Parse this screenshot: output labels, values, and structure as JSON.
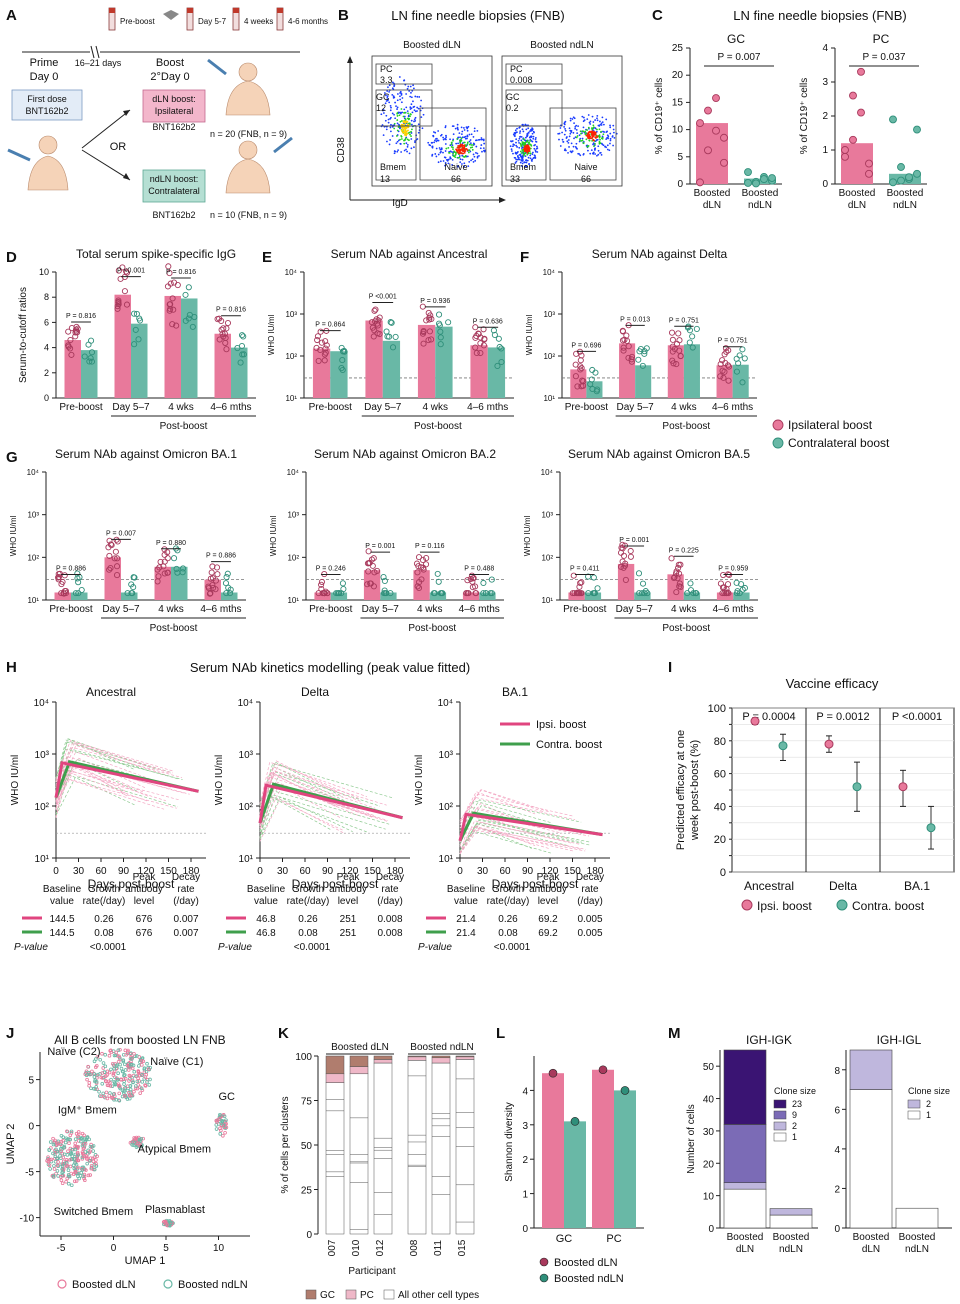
{
  "colors": {
    "ipsi": "#e8799b",
    "ipsi_dot": "#a8395c",
    "contra": "#69b8a6",
    "contra_dot": "#2f8f7a",
    "line_ipsi": "#e0457f",
    "line_contra": "#3f9f4c",
    "gc": "#b07d6e",
    "pc": "#efb8c8"
  },
  "panel_A": {
    "letter": "A",
    "timeline": [
      "Pre-boost",
      "Day 5-7",
      "4 weeks",
      "4-6 months"
    ],
    "prime": "Prime",
    "day0": "Day 0",
    "gap": "16–21 days",
    "boost": "Boost",
    "boost_day": "2°Day 0",
    "first_dose_1": "First dose",
    "first_dose_2": "BNT162b2",
    "or": "OR",
    "dln_box_1": "dLN boost:",
    "dln_box_2": "Ipsilateral",
    "dln_vaccine": "BNT162b2",
    "dln_n": "n = 20 (FNB, n = 9)",
    "ndln_box_1": "ndLN boost:",
    "ndln_box_2": "Contralateral",
    "ndln_vaccine": "BNT162b2",
    "ndln_n": "n = 10 (FNB, n = 9)"
  },
  "panel_B": {
    "letter": "B",
    "title": "LN fine needle biopsies (FNB)",
    "ylabel": "CD38",
    "xlabel": "IgD",
    "plots": [
      {
        "label": "Boosted dLN",
        "gates": [
          {
            "name": "PC",
            "value": "3.3"
          },
          {
            "name": "GC",
            "value": "12"
          },
          {
            "name": "Bmem",
            "value": "13"
          },
          {
            "name": "Naive",
            "value": "66"
          }
        ]
      },
      {
        "label": "Boosted ndLN",
        "gates": [
          {
            "name": "PC",
            "value": "0.008"
          },
          {
            "name": "GC",
            "value": "0.2"
          },
          {
            "name": "Bmem",
            "value": "33"
          },
          {
            "name": "Naive",
            "value": "66"
          }
        ]
      }
    ]
  },
  "panel_C": {
    "letter": "C",
    "title": "LN fine needle biopsies (FNB)"
  },
  "panel_D": {
    "letter": "D"
  },
  "panel_E": {
    "letter": "E"
  },
  "panel_F": {
    "letter": "F"
  },
  "panel_G": {
    "letter": "G"
  },
  "legend_DG": {
    "ipsi": "Ipsilateral boost",
    "contra": "Contralateral boost"
  },
  "panel_H": {
    "letter": "H",
    "title": "Serum NAb kinetics modelling (peak value fitted)"
  },
  "panel_I": {
    "letter": "I"
  },
  "panel_J": {
    "letter": "J"
  },
  "panel_K": {
    "letter": "K"
  },
  "panel_L": {
    "letter": "L"
  },
  "panel_M": {
    "letter": "M"
  },
  "chart_data": [
    {
      "id": "C1",
      "type": "bar",
      "title": "GC",
      "ylabel": "% of CD19⁺ cells",
      "categories": [
        "Boosted dLN",
        "Boosted ndLN"
      ],
      "values": [
        11.2,
        1.0
      ],
      "ylim": [
        0,
        25
      ],
      "yticks": [
        0,
        5,
        10,
        15,
        20,
        25
      ],
      "p": "P = 0.007",
      "points": [
        [
          0.3,
          6.2,
          9.8,
          8.5,
          11.2,
          13.5,
          15.8,
          3.9
        ],
        [
          0.2,
          0.4,
          1.3,
          0.6,
          2.2,
          0.1,
          0.9,
          1.1
        ]
      ]
    },
    {
      "id": "C2",
      "type": "bar",
      "title": "PC",
      "ylabel": "% of CD19⁺ cells",
      "categories": [
        "Boosted dLN",
        "Boosted ndLN"
      ],
      "values": [
        1.2,
        0.3
      ],
      "ylim": [
        0,
        4
      ],
      "yticks": [
        0,
        1,
        2,
        3,
        4
      ],
      "p": "P = 0.037",
      "points": [
        [
          0.8,
          1.3,
          2.1,
          0.3,
          1.0,
          2.6,
          3.3,
          0.6
        ],
        [
          0.05,
          0.1,
          0.15,
          1.6,
          1.9,
          0.5,
          0.2,
          0.3
        ]
      ]
    },
    {
      "id": "D",
      "type": "bar",
      "scale": "linear",
      "title": "Total serum spike-specific IgG",
      "ylabel": "Serum-to-cutoff ratios",
      "ylim": [
        0,
        10
      ],
      "yticks": [
        0,
        2,
        4,
        6,
        8,
        10
      ],
      "categories": [
        "Pre-boost",
        "Day 5–7",
        "4 wks",
        "4–6 mths"
      ],
      "group_label": "Post-boost",
      "series": [
        {
          "name": "Ipsilateral boost",
          "values": [
            4.6,
            8.2,
            8.1,
            5.1
          ]
        },
        {
          "name": "Contralateral boost",
          "values": [
            3.8,
            5.9,
            7.9,
            4.0
          ]
        }
      ],
      "p": [
        "P = 0.816",
        "P <0.001",
        "P = 0.816",
        "P = 0.816"
      ]
    },
    {
      "id": "E",
      "type": "bar",
      "scale": "log",
      "title": "Serum NAb against Ancestral",
      "ylabel": "WHO IU/ml",
      "ylim": [
        10,
        10000
      ],
      "threshold": 30,
      "categories": [
        "Pre-boost",
        "Day 5–7",
        "4 wks",
        "4–6 mths"
      ],
      "group_label": "Post-boost",
      "series": [
        {
          "name": "Ipsilateral boost",
          "values": [
            150,
            700,
            550,
            180
          ]
        },
        {
          "name": "Contralateral boost",
          "values": [
            130,
            230,
            500,
            160
          ]
        }
      ],
      "p": [
        "P = 0.864",
        "P <0.001",
        "P = 0.936",
        "P = 0.636"
      ]
    },
    {
      "id": "F",
      "type": "bar",
      "scale": "log",
      "title": "Serum NAb against Delta",
      "ylabel": "WHO IU/ml",
      "ylim": [
        10,
        10000
      ],
      "threshold": 30,
      "categories": [
        "Pre-boost",
        "Day 5–7",
        "4 wks",
        "4–6 mths"
      ],
      "group_label": "Post-boost",
      "series": [
        {
          "name": "Ipsilateral boost",
          "values": [
            48,
            200,
            180,
            60
          ]
        },
        {
          "name": "Contralateral boost",
          "values": [
            25,
            60,
            190,
            62
          ]
        }
      ],
      "p": [
        "P = 0.696",
        "P = 0.013",
        "P = 0.751",
        "P = 0.751"
      ]
    },
    {
      "id": "G1",
      "type": "bar",
      "scale": "log",
      "title": "Serum NAb against Omicron BA.1",
      "ylabel": "WHO IU/ml",
      "ylim": [
        10,
        10000
      ],
      "threshold": 30,
      "categories": [
        "Pre-boost",
        "Day 5–7",
        "4 wks",
        "4–6 mths"
      ],
      "group_label": "Post-boost",
      "series": [
        {
          "name": "Ipsilateral boost",
          "values": [
            15,
            100,
            60,
            30
          ]
        },
        {
          "name": "Contralateral boost",
          "values": [
            15,
            15,
            60,
            15
          ]
        }
      ],
      "p": [
        "P = 0.886",
        "P = 0.007",
        "P = 0.880",
        "P = 0.886"
      ]
    },
    {
      "id": "G2",
      "type": "bar",
      "scale": "log",
      "title": "Serum NAb against Omicron BA.2",
      "ylabel": "WHO IU/ml",
      "ylim": [
        10,
        10000
      ],
      "threshold": 30,
      "categories": [
        "Pre-boost",
        "Day 5–7",
        "4 wks",
        "4–6 mths"
      ],
      "group_label": "Post-boost",
      "series": [
        {
          "name": "Ipsilateral boost",
          "values": [
            15,
            50,
            50,
            15
          ]
        },
        {
          "name": "Contralateral boost",
          "values": [
            15,
            15,
            15,
            15
          ]
        }
      ],
      "p": [
        "P = 0.246",
        "P = 0.001",
        "P = 0.116",
        "P = 0.488"
      ]
    },
    {
      "id": "G3",
      "type": "bar",
      "scale": "log",
      "title": "Serum NAb against Omicron BA.5",
      "ylabel": "WHO IU/ml",
      "ylim": [
        10,
        10000
      ],
      "threshold": 30,
      "categories": [
        "Pre-boost",
        "Day 5–7",
        "4 wks",
        "4–6 mths"
      ],
      "group_label": "Post-boost",
      "series": [
        {
          "name": "Ipsilateral boost",
          "values": [
            15,
            70,
            40,
            15
          ]
        },
        {
          "name": "Contralateral boost",
          "values": [
            15,
            15,
            15,
            15
          ]
        }
      ],
      "p": [
        "P = 0.411",
        "P = 0.001",
        "P = 0.225",
        "P = 0.959"
      ]
    },
    {
      "id": "H",
      "type": "line",
      "scale": "log",
      "ylabel": "WHO IU/ml",
      "xlabel": "Days post-boost",
      "xticks": [
        0,
        30,
        60,
        90,
        120,
        150,
        180
      ],
      "ylim": [
        10,
        10000
      ],
      "threshold": 30,
      "legend": [
        "Ipsi. boost",
        "Contra. boost"
      ],
      "table_headers": [
        "Baseline value",
        "Growth rate(/day)",
        "Peak antibody level",
        "Decay rate (/day)"
      ],
      "pvalue_label": "P-value",
      "panels": [
        {
          "title": "Ancestral",
          "ipsi": [
            144.5,
            0.26,
            676,
            0.007
          ],
          "contra": [
            144.5,
            0.08,
            676,
            0.007
          ],
          "p": "<0.0001"
        },
        {
          "title": "Delta",
          "ipsi": [
            46.8,
            0.26,
            251,
            0.008
          ],
          "contra": [
            46.8,
            0.08,
            251,
            0.008
          ],
          "p": "<0.0001"
        },
        {
          "title": "BA.1",
          "ipsi": [
            21.4,
            0.26,
            69.2,
            0.005
          ],
          "contra": [
            21.4,
            0.08,
            69.2,
            0.005
          ],
          "p": "<0.0001"
        }
      ]
    },
    {
      "id": "I",
      "type": "scatter",
      "title": "Vaccine efficacy",
      "ylabel": "Predicted efficacy at one week post-boost (%)",
      "ylim": [
        0,
        100
      ],
      "yticks": [
        0,
        10,
        20,
        30,
        40,
        50,
        60,
        70,
        80,
        90,
        100
      ],
      "categories": [
        "Ancestral",
        "Delta",
        "BA.1"
      ],
      "p": [
        "P = 0.0004",
        "P = 0.0012",
        "P <0.0001"
      ],
      "series": [
        {
          "name": "Ipsi. boost",
          "values": [
            92,
            78,
            52
          ],
          "low": [
            90,
            73,
            40
          ],
          "high": [
            94,
            83,
            62
          ]
        },
        {
          "name": "Contra. boost",
          "values": [
            77,
            52,
            27
          ],
          "low": [
            68,
            37,
            14
          ],
          "high": [
            84,
            67,
            40
          ]
        }
      ]
    },
    {
      "id": "J",
      "type": "scatter",
      "title": "All B cells from boosted LN FNB",
      "xlabel": "UMAP 1",
      "ylabel": "UMAP 2",
      "xticks": [
        -5,
        0,
        5,
        10
      ],
      "yticks": [
        -10,
        -5,
        0,
        5
      ],
      "clusters": [
        "Naïve (C2)",
        "Naïve (C1)",
        "GC",
        "IgM⁺ Bmem",
        "Atypical Bmem",
        "Switched Bmem",
        "Plasmablast"
      ],
      "legend": [
        "Boosted dLN",
        "Boosted ndLN"
      ]
    },
    {
      "id": "K",
      "type": "bar",
      "stacked": true,
      "ylabel": "% of cells per clusters",
      "xlabel": "Participant",
      "yticks": [
        0,
        25,
        50,
        75,
        100
      ],
      "groups": [
        {
          "label": "Boosted dLN",
          "participants": [
            "007",
            "010",
            "012"
          ],
          "gc": [
            10,
            6,
            2
          ],
          "pc": [
            5,
            4,
            2
          ]
        },
        {
          "label": "Boosted ndLN",
          "participants": [
            "008",
            "011",
            "015"
          ],
          "gc": [
            0.5,
            1,
            0.5
          ],
          "pc": [
            2,
            3,
            1.5
          ]
        }
      ],
      "legend": [
        "GC",
        "PC",
        "All other cell types"
      ]
    },
    {
      "id": "L",
      "type": "bar",
      "ylabel": "Shannon diversity",
      "categories": [
        "GC",
        "PC"
      ],
      "ylim": [
        0,
        5
      ],
      "yticks": [
        0,
        1,
        2,
        3,
        4
      ],
      "series": [
        {
          "name": "Boosted dLN",
          "values": [
            4.5,
            4.6
          ]
        },
        {
          "name": "Boosted ndLN",
          "values": [
            3.1,
            4.0
          ]
        }
      ]
    },
    {
      "id": "M1",
      "type": "bar",
      "stacked": true,
      "title": "IGH-IGK",
      "ylabel": "Number of cells",
      "ylim": [
        0,
        55
      ],
      "yticks": [
        0,
        10,
        20,
        30,
        40,
        50
      ],
      "categories": [
        "Boosted dLN",
        "Boosted ndLN"
      ],
      "legend_title": "Clone size",
      "stack_names": [
        "23",
        "9",
        "2",
        "1"
      ],
      "stacks": [
        [
          23,
          18,
          2,
          12
        ],
        [
          0,
          0,
          2,
          4
        ]
      ]
    },
    {
      "id": "M2",
      "type": "bar",
      "stacked": true,
      "title": "IGH-IGL",
      "ylim": [
        0,
        9
      ],
      "yticks": [
        0,
        2,
        4,
        6,
        8
      ],
      "categories": [
        "Boosted dLN",
        "Boosted ndLN"
      ],
      "legend_title": "Clone size",
      "stack_names": [
        "2",
        "1"
      ],
      "stacks": [
        [
          2,
          7
        ],
        [
          0,
          1
        ]
      ]
    }
  ]
}
